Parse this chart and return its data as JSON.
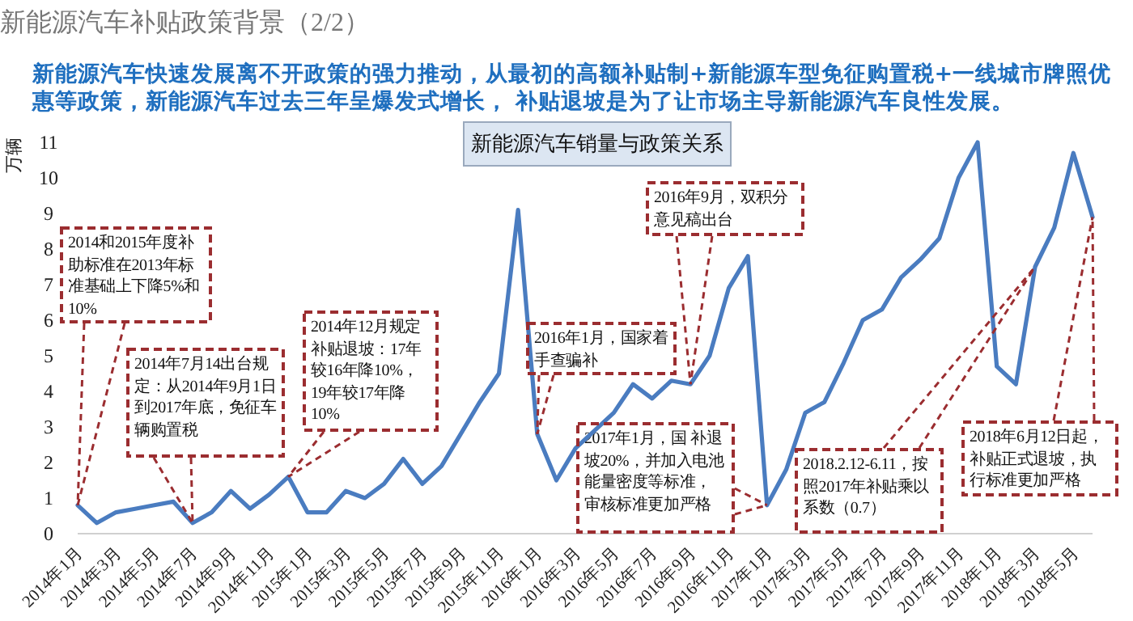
{
  "chart_data": {
    "type": "line",
    "title": "新能源汽车补贴政策背景（2/2）",
    "subtitle": "新能源汽车快速发展离不开政策的强力推动，从最初的高额补贴制+新能源车型免征购置税+一线城市牌照优惠等政策，新能源汽车过去三年呈爆发式增长， 补贴退坡是为了让市场主导新能源汽车良性发展。",
    "ylabel": "万辆",
    "x": [
      "2014-01",
      "2014-02",
      "2014-03",
      "2014-04",
      "2014-05",
      "2014-06",
      "2014-07",
      "2014-08",
      "2014-09",
      "2014-10",
      "2014-11",
      "2014-12",
      "2015-01",
      "2015-02",
      "2015-03",
      "2015-04",
      "2015-05",
      "2015-06",
      "2015-07",
      "2015-08",
      "2015-09",
      "2015-10",
      "2015-11",
      "2015-12",
      "2016-01",
      "2016-02",
      "2016-03",
      "2016-04",
      "2016-05",
      "2016-06",
      "2016-07",
      "2016-08",
      "2016-09",
      "2016-10",
      "2016-11",
      "2016-12",
      "2017-01",
      "2017-02",
      "2017-03",
      "2017-04",
      "2017-05",
      "2017-06",
      "2017-07",
      "2017-08",
      "2017-09",
      "2017-10",
      "2017-11",
      "2017-12",
      "2018-01",
      "2018-02",
      "2018-03",
      "2018-04",
      "2018-05",
      "2018-06"
    ],
    "series": [
      {
        "color": "#4a7cc0",
        "values": [
          0.8,
          0.3,
          0.6,
          0.7,
          0.8,
          0.9,
          0.3,
          0.6,
          1.2,
          0.7,
          1.1,
          1.6,
          0.6,
          0.6,
          1.2,
          1.0,
          1.4,
          2.1,
          1.4,
          1.9,
          2.8,
          3.7,
          4.5,
          9.1,
          2.8,
          1.5,
          2.4,
          2.9,
          3.4,
          4.2,
          3.8,
          4.3,
          4.2,
          5.0,
          6.9,
          7.8,
          0.8,
          1.8,
          3.4,
          3.7,
          4.8,
          6.0,
          6.3,
          7.2,
          7.7,
          8.3,
          10.0,
          11.0,
          4.7,
          4.2,
          7.5,
          8.6,
          10.7,
          8.9
        ]
      }
    ],
    "xticks": [
      {
        "value": "2014-01",
        "label": "2014年1月"
      },
      {
        "value": "2014-03",
        "label": "2014年3月"
      },
      {
        "value": "2014-05",
        "label": "2014年5月"
      },
      {
        "value": "2014-07",
        "label": "2014年7月"
      },
      {
        "value": "2014-09",
        "label": "2014年9月"
      },
      {
        "value": "2014-11",
        "label": "2014年11月"
      },
      {
        "value": "2015-01",
        "label": "2015年1月"
      },
      {
        "value": "2015-03",
        "label": "2015年3月"
      },
      {
        "value": "2015-05",
        "label": "2015年5月"
      },
      {
        "value": "2015-07",
        "label": "2015年7月"
      },
      {
        "value": "2015-09",
        "label": "2015年9月"
      },
      {
        "value": "2015-11",
        "label": "2015年11月"
      },
      {
        "value": "2016-01",
        "label": "2016年1月"
      },
      {
        "value": "2016-03",
        "label": "2016年3月"
      },
      {
        "value": "2016-05",
        "label": "2016年5月"
      },
      {
        "value": "2016-07",
        "label": "2016年7月"
      },
      {
        "value": "2016-09",
        "label": "2016年9月"
      },
      {
        "value": "2016-11",
        "label": "2016年11月"
      },
      {
        "value": "2017-01",
        "label": "2017年1月"
      },
      {
        "value": "2017-03",
        "label": "2017年3月"
      },
      {
        "value": "2017-05",
        "label": "2017年5月"
      },
      {
        "value": "2017-07",
        "label": "2017年7月"
      },
      {
        "value": "2017-09",
        "label": "2017年9月"
      },
      {
        "value": "2017-11",
        "label": "2017年11月"
      },
      {
        "value": "2018-01",
        "label": "2018年1月"
      },
      {
        "value": "2018-03",
        "label": "2018年3月"
      },
      {
        "value": "2018-05",
        "label": "2018年5月"
      }
    ],
    "xlim": [
      "2014-01",
      "2018-06"
    ],
    "ylim": [
      0,
      11
    ],
    "yticks": [
      0,
      1,
      2,
      3,
      4,
      5,
      6,
      7,
      8,
      9,
      10,
      11
    ],
    "grid": false,
    "marker": "none",
    "line_style": "solid",
    "annotations": [
      "新能源汽车销量与政策关系",
      {
        "text": "2014和2015年度补助标准在2013年标准基础上下降5%和10%",
        "x": "2014-01",
        "y": 0.8
      },
      {
        "text": "2014年7月14出台规定：从2014年9月1日到2017年底，免征车辆购置税",
        "x": "2014-07",
        "y": 0.3
      },
      {
        "text": "2014年12月规定补贴退坡：17年较16年降10%，19年较17年降10%",
        "x": "2014-12",
        "y": 1.6
      },
      {
        "text": "2016年1月，国家着手查骗补",
        "x": "2016-01",
        "y": 2.8
      },
      {
        "text": "2016年9月，双积分意见稿出台",
        "x": "2016-09",
        "y": 4.2
      },
      {
        "text": "2017年1月，国 补退坡20%，并加入电池能量密度等标准，审核标准更加严格",
        "x": "2017-01",
        "y": 0.8
      },
      {
        "text": "2018.2.12-6.11，按照2017年补贴乘以系数（0.7）",
        "x": "2018-03",
        "y": 7.5
      },
      {
        "text": "2018年6月12日起，补贴正式退坡，执行标准更加严格",
        "x": "2018-06",
        "y": 8.9
      }
    ]
  }
}
